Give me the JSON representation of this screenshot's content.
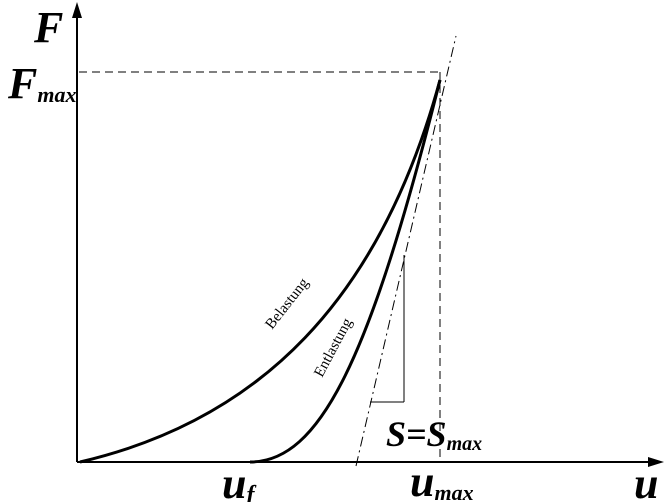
{
  "axes": {
    "y_label": "F",
    "y_max_label_main": "F",
    "y_max_label_sub": "max",
    "x_label": "u",
    "x_f_label_main": "u",
    "x_f_label_sub": "f",
    "x_max_label_main": "u",
    "x_max_label_sub": "max"
  },
  "curves": {
    "loading_label": "Belastung",
    "unloading_label": "Entlastung"
  },
  "stiffness": {
    "label_left_main": "S",
    "equals": "=",
    "label_right_main": "S",
    "label_right_sub": "max"
  },
  "colors": {
    "ink": "#000000",
    "background": "#ffffff"
  }
}
